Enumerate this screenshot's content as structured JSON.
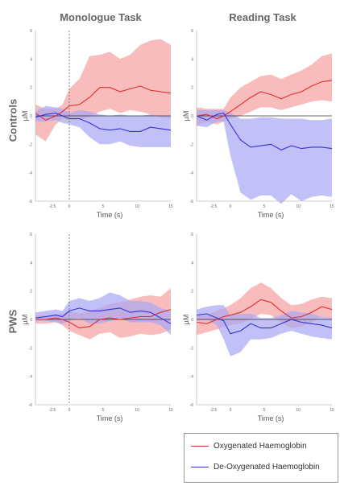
{
  "columns": [
    "Monologue Task",
    "Reading Task"
  ],
  "rows": [
    "Controls",
    "PWS"
  ],
  "colors": {
    "oxy": "#e32c2c",
    "oxy_fill": "#f7a0a0",
    "deoxy": "#3232d6",
    "deoxy_fill": "#a7a7f5"
  },
  "legend": [
    {
      "label": "Oxygenated Haemoglobin",
      "color": "#e32c2c"
    },
    {
      "label": "De-Oxygenated Haemoglobin",
      "color": "#3232d6"
    }
  ],
  "chart_data": [
    {
      "type": "line",
      "title": "Monologue Task",
      "row": "Controls",
      "xlabel": "Time (s)",
      "ylabel": "µM",
      "xlim": [
        -5,
        15
      ],
      "ylim": [
        -6,
        6
      ],
      "xticks": [
        -2.5,
        0,
        5,
        10,
        15
      ],
      "yticks": [
        -6,
        -4,
        -2,
        0,
        2,
        4,
        6
      ],
      "onset_line": true,
      "x": [
        -5,
        -3.5,
        -2,
        -1,
        0,
        1.5,
        3,
        4.5,
        6,
        7.5,
        9,
        10.5,
        12,
        13.5,
        15
      ],
      "series": [
        {
          "name": "Oxygenated Haemoglobin",
          "values": [
            0.2,
            -0.3,
            0,
            0.3,
            0.7,
            0.8,
            1.3,
            2.0,
            2.0,
            1.7,
            1.9,
            2.1,
            1.8,
            1.7,
            1.6
          ],
          "lower": [
            -1.3,
            -1.8,
            -0.6,
            -0.2,
            -0.3,
            -0.3,
            -0.1,
            0.3,
            0.5,
            0.2,
            0.4,
            0.3,
            0.1,
            -0.1,
            -0.2
          ],
          "upper": [
            0.8,
            0.5,
            0.5,
            0.8,
            1.9,
            2.6,
            4.2,
            4.3,
            4.5,
            4.0,
            4.3,
            5.0,
            5.3,
            5.4,
            5.0
          ]
        },
        {
          "name": "De-Oxygenated Haemoglobin",
          "values": [
            -0.1,
            0.1,
            0.2,
            0,
            -0.2,
            -0.2,
            -0.5,
            -0.9,
            -1.0,
            -0.9,
            -1.1,
            -1.1,
            -0.8,
            -0.9,
            -1.0
          ],
          "lower": [
            -0.4,
            -0.4,
            -0.3,
            -0.5,
            -0.6,
            -0.8,
            -1.5,
            -2.0,
            -2.0,
            -1.8,
            -2.1,
            -2.2,
            -2.2,
            -2.2,
            -2.2
          ],
          "upper": [
            0.3,
            0.7,
            0.6,
            0.5,
            0.2,
            0.4,
            0.3,
            0.1,
            0,
            0.1,
            0,
            0,
            0.1,
            0,
            0
          ]
        }
      ]
    },
    {
      "type": "line",
      "title": "Reading Task",
      "row": "Controls",
      "xlabel": "Time (s)",
      "ylabel": "µM",
      "xlim": [
        -5,
        15
      ],
      "ylim": [
        -6,
        6
      ],
      "xticks": [
        -2.5,
        0,
        5,
        10,
        15
      ],
      "yticks": [
        -6,
        -4,
        -2,
        0,
        2,
        4,
        6
      ],
      "onset_line": false,
      "x": [
        -5,
        -3.5,
        -2,
        -1,
        0,
        1.5,
        3,
        4.5,
        6,
        7.5,
        9,
        10.5,
        12,
        13.5,
        15
      ],
      "series": [
        {
          "name": "Oxygenated Haemoglobin",
          "values": [
            0,
            0.1,
            -0.2,
            0,
            0.3,
            0.8,
            1.3,
            1.7,
            1.5,
            1.2,
            1.5,
            1.7,
            2.1,
            2.4,
            2.5
          ],
          "lower": [
            -0.7,
            -0.4,
            -0.6,
            -0.4,
            -0.2,
            0,
            0.3,
            0.6,
            0.6,
            0.4,
            0.6,
            0.8,
            1.0,
            1.1,
            1.0
          ],
          "upper": [
            0.6,
            0.5,
            0.5,
            0.5,
            1.3,
            2.0,
            2.4,
            2.8,
            2.9,
            2.6,
            2.9,
            3.2,
            3.6,
            4.2,
            4.4
          ]
        },
        {
          "name": "De-Oxygenated Haemoglobin",
          "values": [
            0,
            -0.3,
            0.1,
            0.2,
            -0.6,
            -1.7,
            -2.2,
            -2.1,
            -2.0,
            -2.4,
            -2.1,
            -2.3,
            -2.2,
            -2.2,
            -2.3
          ],
          "lower": [
            -0.7,
            -0.8,
            -0.4,
            -0.4,
            -2.8,
            -5.4,
            -5.9,
            -5.6,
            -5.6,
            -6.2,
            -5.5,
            -6.0,
            -5.7,
            -5.6,
            -5.7
          ],
          "upper": [
            0.4,
            0.4,
            0.4,
            0.4,
            0.2,
            -0.2,
            -0.2,
            -0.1,
            -0.1,
            -0.2,
            -0.2,
            -0.2,
            -0.3,
            -0.3,
            -0.2
          ]
        }
      ]
    },
    {
      "type": "line",
      "title": "Monologue Task",
      "row": "PWS",
      "xlabel": "Time (s)",
      "ylabel": "µM",
      "xlim": [
        -5,
        15
      ],
      "ylim": [
        -6,
        6
      ],
      "xticks": [
        -2.5,
        0,
        5,
        10,
        15
      ],
      "yticks": [
        -6,
        -4,
        -2,
        0,
        2,
        4,
        6
      ],
      "onset_line": true,
      "x": [
        -5,
        -3.5,
        -2,
        -1,
        0,
        1.5,
        3,
        4.5,
        6,
        7.5,
        9,
        10.5,
        12,
        13.5,
        15
      ],
      "series": [
        {
          "name": "Oxygenated Haemoglobin",
          "values": [
            0,
            0,
            0.1,
            0,
            -0.2,
            -0.6,
            -0.5,
            0,
            0.1,
            0,
            0.1,
            0.2,
            0.2,
            0.5,
            0.7
          ],
          "lower": [
            -0.3,
            -0.3,
            -0.2,
            -0.4,
            -0.8,
            -1.1,
            -1.4,
            -1.0,
            -0.9,
            -1.3,
            -1.2,
            -1.0,
            -1.1,
            -1.0,
            -0.7
          ],
          "upper": [
            0.3,
            0.3,
            0.4,
            0.4,
            0.6,
            0.4,
            0.6,
            0.8,
            1.1,
            1.2,
            1.4,
            1.6,
            1.7,
            1.6,
            2.2
          ]
        },
        {
          "name": "De-Oxygenated Haemoglobin",
          "values": [
            0.1,
            0.2,
            0.3,
            0.2,
            0.6,
            0.8,
            0.6,
            0.6,
            0.7,
            0.8,
            0.5,
            0.6,
            0.5,
            0.1,
            -0.3
          ],
          "lower": [
            -0.1,
            -0.1,
            -0.2,
            -0.3,
            -0.1,
            0.1,
            -0.3,
            -0.3,
            -0.1,
            0.1,
            -0.2,
            -0.2,
            -0.2,
            -0.4,
            -1.1
          ],
          "upper": [
            0.5,
            0.6,
            0.7,
            0.6,
            1.3,
            1.5,
            1.3,
            1.5,
            1.9,
            1.7,
            1.3,
            1.3,
            1.2,
            0.8,
            0.6
          ]
        }
      ]
    },
    {
      "type": "line",
      "title": "Reading Task",
      "row": "PWS",
      "xlabel": "Time (s)",
      "ylabel": "µM",
      "xlim": [
        -5,
        15
      ],
      "ylim": [
        -6,
        6
      ],
      "xticks": [
        -2.5,
        0,
        5,
        10,
        15
      ],
      "yticks": [
        -6,
        -4,
        -2,
        0,
        2,
        4,
        6
      ],
      "onset_line": false,
      "x": [
        -5,
        -3.5,
        -2,
        -1,
        0,
        1.5,
        3,
        4.5,
        6,
        7.5,
        9,
        10.5,
        12,
        13.5,
        15
      ],
      "series": [
        {
          "name": "Oxygenated Haemoglobin",
          "values": [
            -0.2,
            -0.3,
            0,
            0.2,
            0.3,
            0.5,
            0.9,
            1.4,
            1.2,
            0.6,
            0.1,
            0.2,
            0.5,
            0.9,
            0.7
          ],
          "lower": [
            -1.1,
            -0.9,
            -0.7,
            -0.5,
            -0.4,
            -0.3,
            0,
            0.4,
            0.3,
            -0.2,
            -0.6,
            -0.5,
            -0.2,
            0.2,
            0
          ],
          "upper": [
            0.3,
            0.3,
            0.6,
            0.8,
            1.0,
            1.5,
            2.2,
            2.6,
            2.2,
            1.5,
            1.0,
            1.1,
            1.4,
            1.6,
            1.5
          ]
        },
        {
          "name": "De-Oxygenated Haemoglobin",
          "values": [
            0.3,
            0.4,
            0.1,
            -0.1,
            -1.0,
            -0.8,
            -0.3,
            -0.6,
            -0.6,
            -0.3,
            0,
            -0.2,
            -0.3,
            -0.4,
            -0.6
          ],
          "lower": [
            -0.1,
            0,
            -0.4,
            -1.4,
            -2.6,
            -2.3,
            -1.4,
            -1.4,
            -1.3,
            -1.0,
            -0.8,
            -1.0,
            -1.2,
            -1.3,
            -1.4
          ],
          "upper": [
            0.7,
            0.9,
            1.0,
            1.0,
            0.3,
            0.4,
            0.4,
            0.1,
            0.1,
            0.3,
            0.6,
            0.5,
            0.4,
            0.2,
            0.1
          ]
        }
      ]
    }
  ]
}
